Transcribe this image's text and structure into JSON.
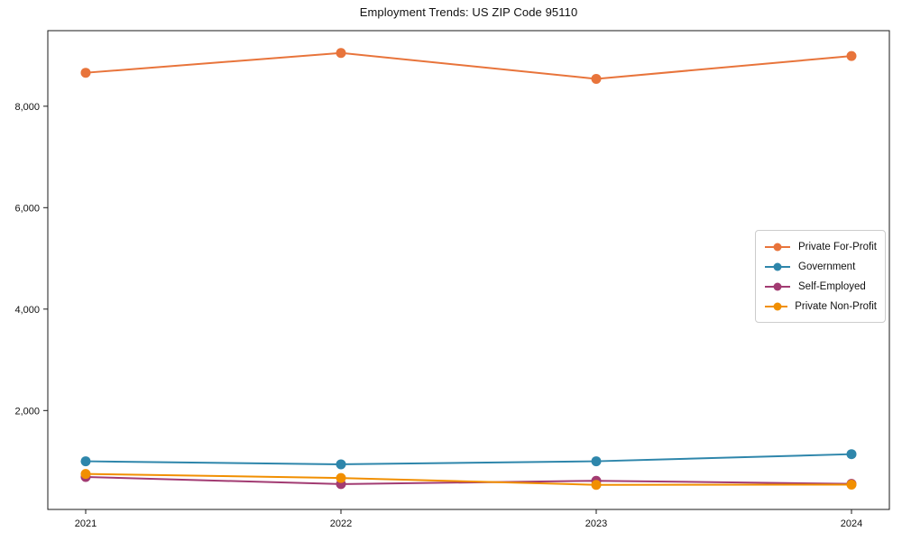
{
  "chart_data": {
    "type": "line",
    "title": "Employment Trends: US ZIP Code 95110",
    "x": [
      "2021",
      "2022",
      "2023",
      "2024"
    ],
    "series": [
      {
        "name": "Private For-Profit",
        "color": "#E8743B",
        "values": [
          8660,
          9050,
          8540,
          8990
        ]
      },
      {
        "name": "Government",
        "color": "#2E86AB",
        "values": [
          1000,
          940,
          1000,
          1140
        ]
      },
      {
        "name": "Self-Employed",
        "color": "#A23B72",
        "values": [
          690,
          550,
          615,
          555
        ]
      },
      {
        "name": "Private Non-Profit",
        "color": "#F18F01",
        "values": [
          750,
          670,
          535,
          540
        ]
      }
    ],
    "yticks": [
      2000,
      4000,
      6000,
      8000
    ],
    "ytick_labels": [
      "2,000",
      "4,000",
      "6,000",
      "8,000"
    ],
    "ylim": [
      50,
      9490
    ],
    "xlabel": "",
    "ylabel": "",
    "grid": false,
    "legend_position": "center-right",
    "frame_color": "#1a1a1a"
  }
}
